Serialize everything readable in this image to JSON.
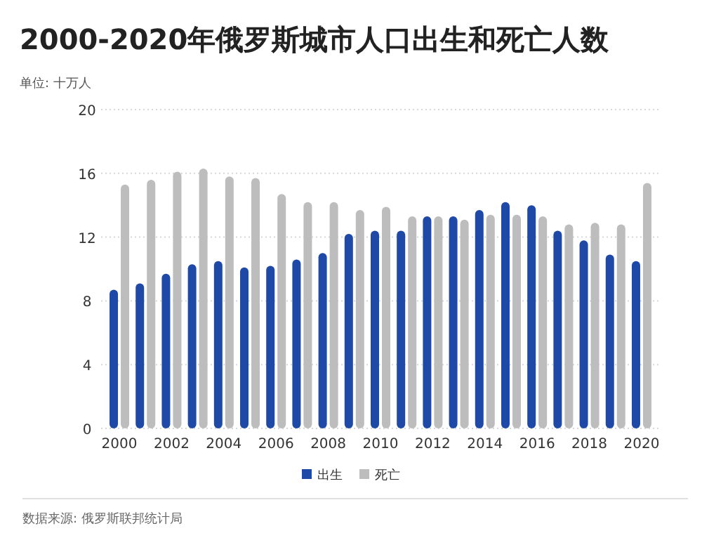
{
  "chart_data": {
    "type": "bar",
    "title": "2000-2020年俄罗斯城市人口出生和死亡人数",
    "ylabel": "单位: 十万人",
    "x": [
      2000,
      2001,
      2002,
      2003,
      2004,
      2005,
      2006,
      2007,
      2008,
      2009,
      2010,
      2011,
      2012,
      2013,
      2014,
      2015,
      2016,
      2017,
      2018,
      2019,
      2020
    ],
    "series": [
      {
        "name": "出生",
        "color": "#1f49a6",
        "values": [
          8.7,
          9.1,
          9.7,
          10.3,
          10.5,
          10.1,
          10.2,
          10.6,
          11.0,
          12.2,
          12.4,
          12.4,
          13.3,
          13.3,
          13.7,
          14.2,
          14.0,
          12.4,
          11.8,
          10.9,
          10.5
        ]
      },
      {
        "name": "死亡",
        "color": "#bdbdbd",
        "values": [
          15.3,
          15.6,
          16.1,
          16.3,
          15.8,
          15.7,
          14.7,
          14.2,
          14.2,
          13.7,
          13.9,
          13.3,
          13.3,
          13.1,
          13.4,
          13.4,
          13.3,
          12.8,
          12.9,
          12.8,
          15.4
        ]
      }
    ],
    "xlim": [
      1999.3,
      2020.7
    ],
    "xticks": [
      2000,
      2002,
      2004,
      2006,
      2008,
      2010,
      2012,
      2014,
      2016,
      2018,
      2020
    ],
    "ylim": [
      0,
      20
    ],
    "yticks": [
      0,
      4,
      8,
      12,
      16,
      20
    ],
    "grid": "y",
    "legend": "bottom",
    "annotations": [
      "数据来源: 俄罗斯联邦统计局"
    ]
  }
}
